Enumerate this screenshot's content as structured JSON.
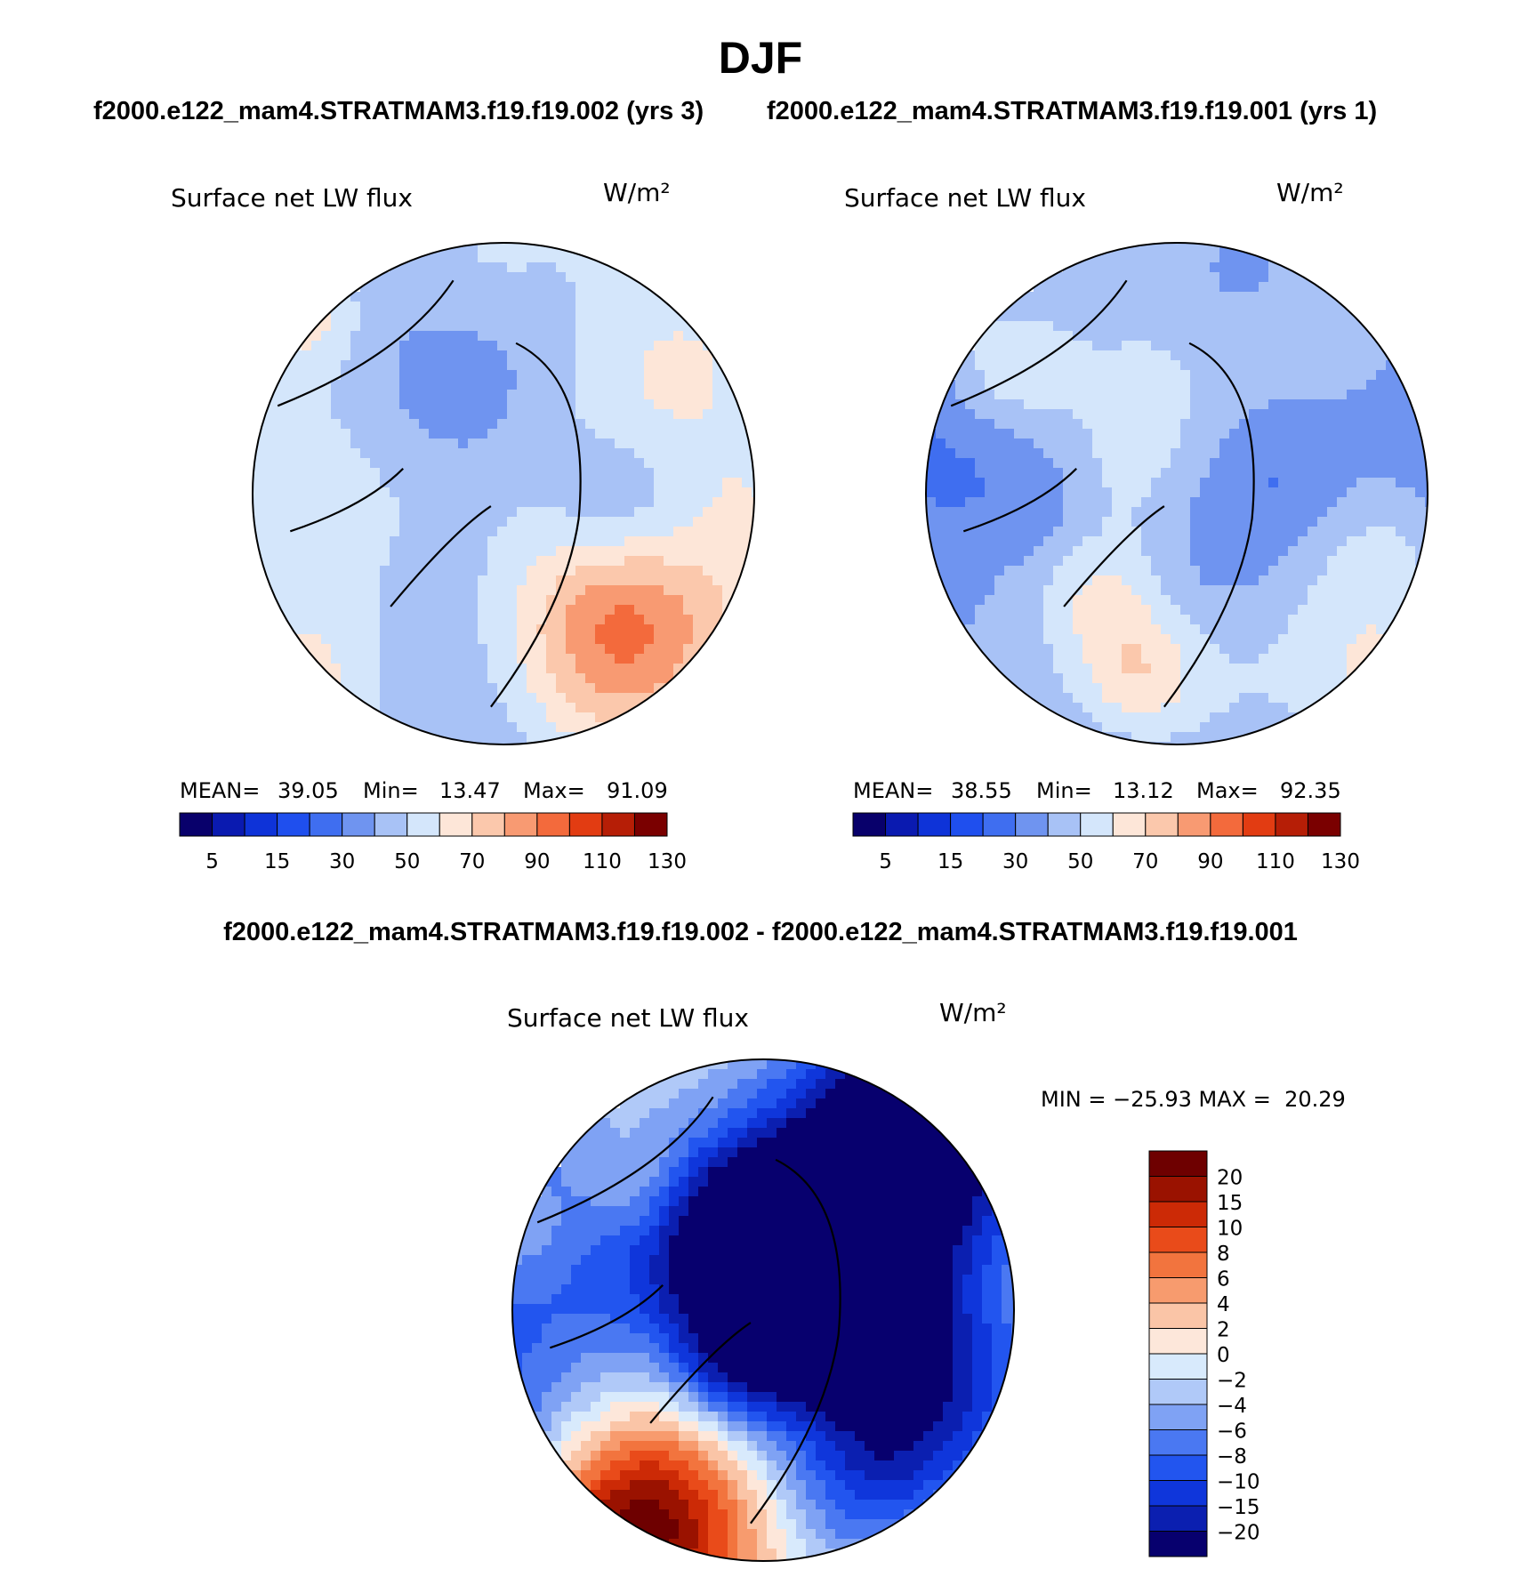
{
  "season": "DJF",
  "case_header": {
    "case1": "f2000.e122_mam4.STRATMAM3.f19.f19.002 (yrs 3)",
    "case2": "f2000.e122_mam4.STRATMAM3.f19.f19.001 (yrs 1)"
  },
  "diff_header": "f2000.e122_mam4.STRATMAM3.f19.f19.002 - f2000.e122_mam4.STRATMAM3.f19.f19.001",
  "variable": "Surface net LW flux",
  "units": "W/m²",
  "colors": {
    "abs_palette": [
      "#08006b",
      "#0a1ab0",
      "#0e33d8",
      "#1f4fee",
      "#3f6ef0",
      "#6f94f0",
      "#a8c2f6",
      "#d4e6fb",
      "#fde6d8",
      "#fbc8ac",
      "#f89a72",
      "#f36a3c",
      "#e23c12",
      "#b61e06",
      "#7a0000"
    ],
    "diff_palette": [
      "#07006e",
      "#0b1fb0",
      "#0f36db",
      "#2255ef",
      "#4a78f2",
      "#7fa2f4",
      "#b0c9f8",
      "#d8eafc",
      "#fde7da",
      "#fac5a7",
      "#f79b6e",
      "#f2743e",
      "#e94b1a",
      "#cc2a06",
      "#9a1200",
      "#6e0000"
    ]
  },
  "panels": [
    {
      "name": "case1",
      "title": "Surface net LW flux",
      "units": "W/m²",
      "stats": {
        "mean_label": "MEAN=",
        "mean": "39.05",
        "min_label": "Min=",
        "min": "13.47",
        "max_label": "Max=",
        "max": "91.09"
      }
    },
    {
      "name": "case2",
      "title": "Surface net LW flux",
      "units": "W/m²",
      "stats": {
        "mean_label": "MEAN=",
        "mean": "38.55",
        "min_label": "Min=",
        "min": "13.12",
        "max_label": "Max=",
        "max": "92.35"
      }
    }
  ],
  "abs_colorbar_ticks": [
    "5",
    "15",
    "30",
    "50",
    "70",
    "90",
    "110",
    "130"
  ],
  "diff_panel": {
    "title": "Surface net LW flux",
    "units": "W/m²",
    "minmax": "MIN = −25.93 MAX =  20.29"
  },
  "diff_colorbar_ticks": [
    "20",
    "15",
    "10",
    "8",
    "6",
    "4",
    "2",
    "0",
    "−2",
    "−4",
    "−6",
    "−8",
    "−10",
    "−15",
    "−20"
  ]
}
